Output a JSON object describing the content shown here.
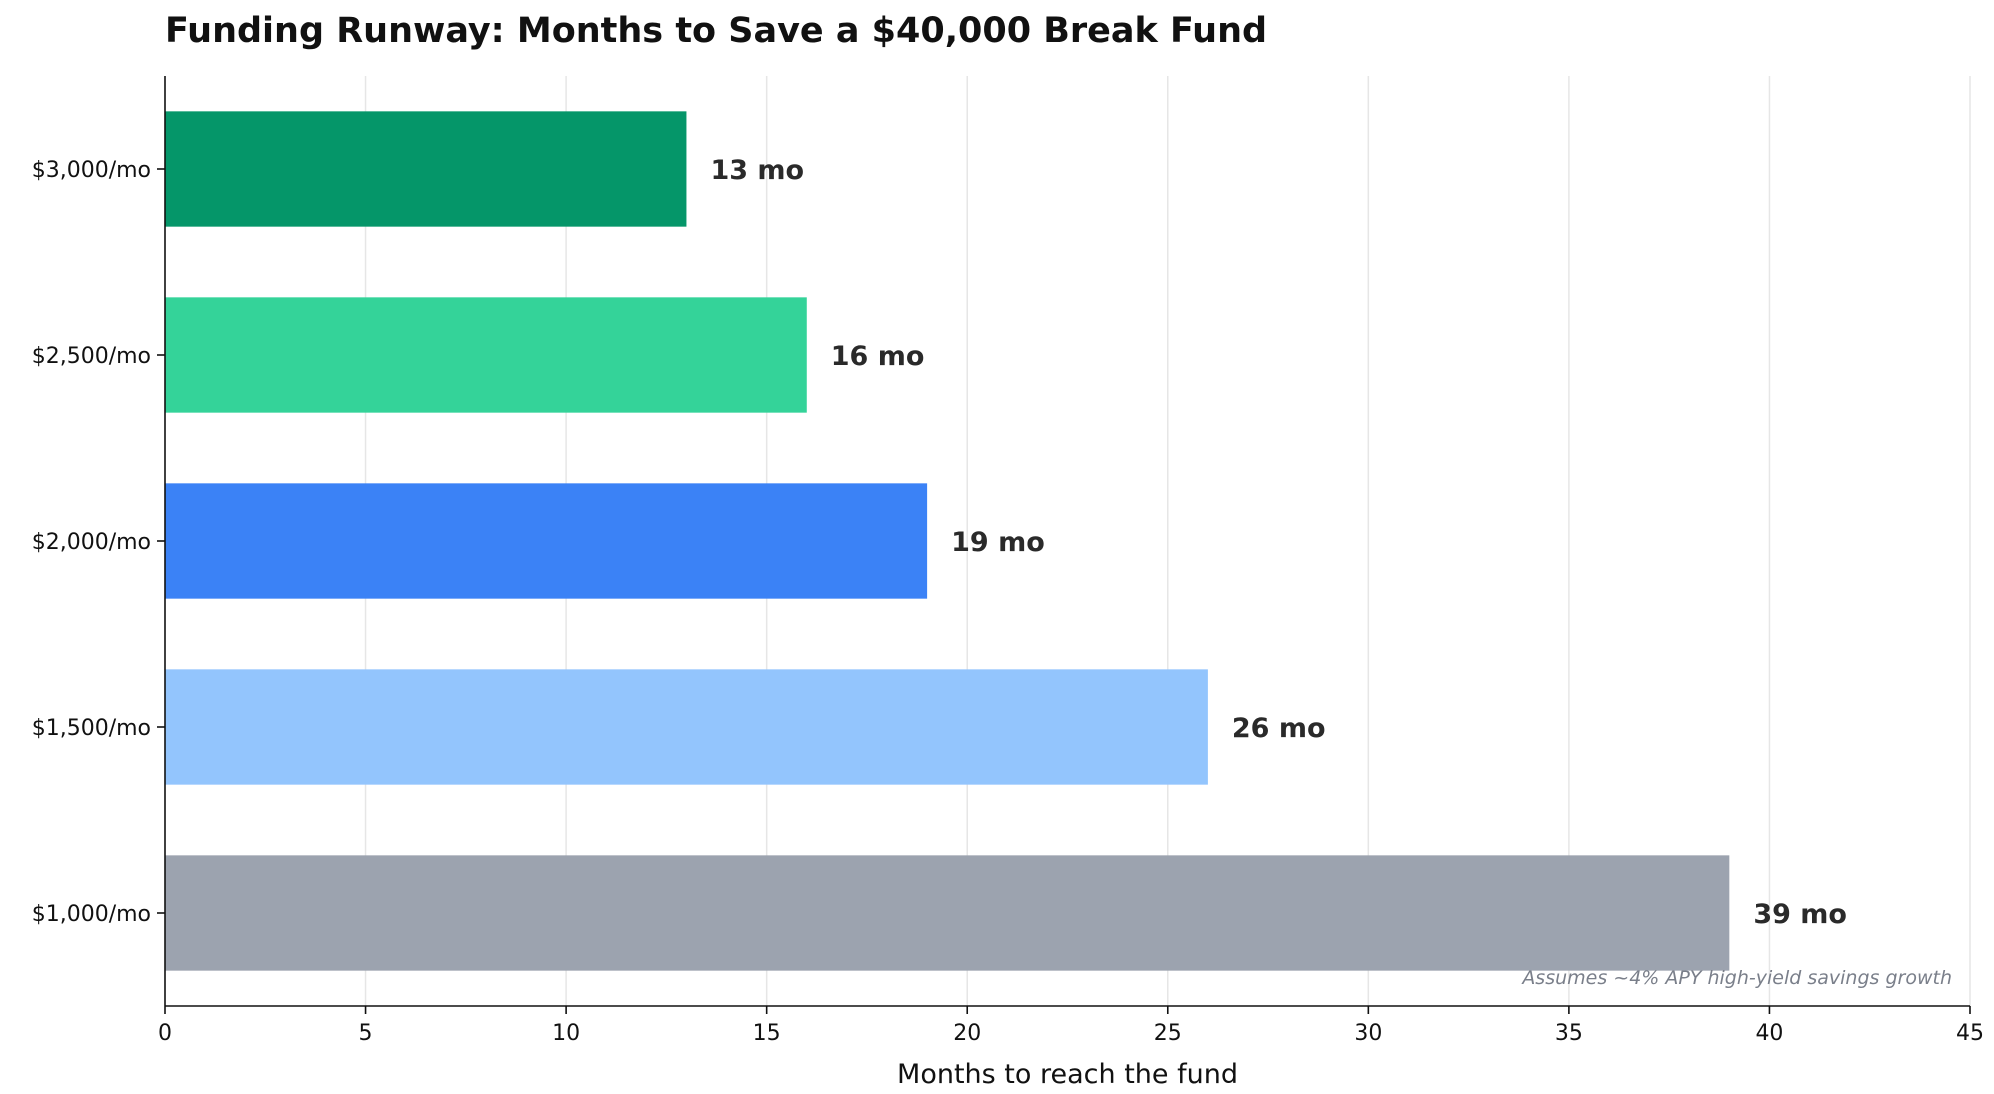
{
  "chart_data": {
    "type": "bar",
    "orientation": "horizontal",
    "title": "Funding Runway: Months to Save a $40,000 Break Fund",
    "xlabel": "Months to reach the fund",
    "ylabel": "",
    "xlim": [
      0,
      45
    ],
    "xticks": [
      0,
      5,
      10,
      15,
      20,
      25,
      30,
      35,
      40,
      45
    ],
    "grid": "vertical",
    "categories": [
      "$3,000/mo",
      "$2,500/mo",
      "$2,000/mo",
      "$1,500/mo",
      "$1,000/mo"
    ],
    "values": [
      13,
      16,
      19,
      26,
      39
    ],
    "data_labels": [
      "13 mo",
      "16 mo",
      "19 mo",
      "26 mo",
      "39 mo"
    ],
    "colors": [
      "#059669",
      "#34d399",
      "#3b82f6",
      "#93c5fd",
      "#9ca3af"
    ],
    "annotation": "Assumes ~4% APY high-yield savings growth"
  }
}
